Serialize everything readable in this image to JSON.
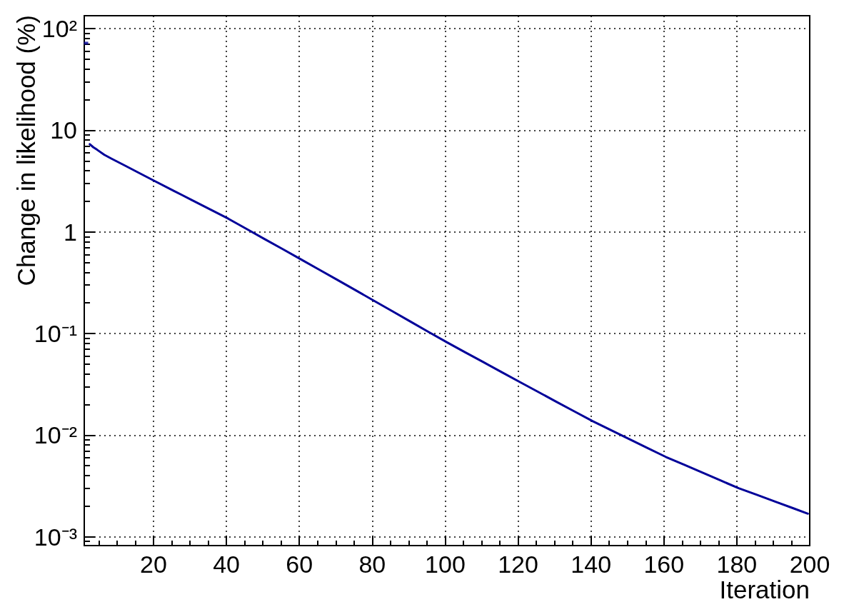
{
  "chart_data": {
    "type": "line",
    "xlabel": "Iteration",
    "ylabel": "Change in likelihood (%)",
    "log": "y",
    "grid": true,
    "marker": "none",
    "line_style": "solid",
    "xlim": [
      1,
      200
    ],
    "ylim": [
      0.00082,
      134
    ],
    "xticks": [
      {
        "value": 5,
        "label": null
      },
      {
        "value": 10,
        "label": null
      },
      {
        "value": 15,
        "label": null
      },
      20,
      {
        "value": 25,
        "label": null
      },
      {
        "value": 30,
        "label": null
      },
      {
        "value": 35,
        "label": null
      },
      40,
      {
        "value": 45,
        "label": null
      },
      {
        "value": 50,
        "label": null
      },
      {
        "value": 55,
        "label": null
      },
      60,
      {
        "value": 65,
        "label": null
      },
      {
        "value": 70,
        "label": null
      },
      {
        "value": 75,
        "label": null
      },
      80,
      {
        "value": 85,
        "label": null
      },
      {
        "value": 90,
        "label": null
      },
      {
        "value": 95,
        "label": null
      },
      100,
      {
        "value": 105,
        "label": null
      },
      {
        "value": 110,
        "label": null
      },
      {
        "value": 115,
        "label": null
      },
      120,
      {
        "value": 125,
        "label": null
      },
      {
        "value": 130,
        "label": null
      },
      {
        "value": 135,
        "label": null
      },
      140,
      {
        "value": 145,
        "label": null
      },
      {
        "value": 150,
        "label": null
      },
      {
        "value": 155,
        "label": null
      },
      160,
      {
        "value": 165,
        "label": null
      },
      {
        "value": 170,
        "label": null
      },
      {
        "value": 175,
        "label": null
      },
      180,
      {
        "value": 185,
        "label": null
      },
      {
        "value": 190,
        "label": null
      },
      {
        "value": 195,
        "label": null
      },
      200
    ],
    "yticks": [
      {
        "value": 0.0009,
        "label": null
      },
      {
        "value": 0.001,
        "label": "10⁻³"
      },
      {
        "value": 0.002,
        "label": null
      },
      {
        "value": 0.003,
        "label": null
      },
      {
        "value": 0.004,
        "label": null
      },
      {
        "value": 0.005,
        "label": null
      },
      {
        "value": 0.006,
        "label": null
      },
      {
        "value": 0.007,
        "label": null
      },
      {
        "value": 0.008,
        "label": null
      },
      {
        "value": 0.009,
        "label": null
      },
      {
        "value": 0.01,
        "label": "10⁻²"
      },
      {
        "value": 0.02,
        "label": null
      },
      {
        "value": 0.03,
        "label": null
      },
      {
        "value": 0.04,
        "label": null
      },
      {
        "value": 0.05,
        "label": null
      },
      {
        "value": 0.06,
        "label": null
      },
      {
        "value": 0.07,
        "label": null
      },
      {
        "value": 0.08,
        "label": null
      },
      {
        "value": 0.09,
        "label": null
      },
      {
        "value": 0.1,
        "label": "10⁻¹"
      },
      {
        "value": 0.2,
        "label": null
      },
      {
        "value": 0.3,
        "label": null
      },
      {
        "value": 0.4,
        "label": null
      },
      {
        "value": 0.5,
        "label": null
      },
      {
        "value": 0.6,
        "label": null
      },
      {
        "value": 0.7,
        "label": null
      },
      {
        "value": 0.8,
        "label": null
      },
      {
        "value": 0.9,
        "label": null
      },
      1,
      {
        "value": 2,
        "label": null
      },
      {
        "value": 3,
        "label": null
      },
      {
        "value": 4,
        "label": null
      },
      {
        "value": 5,
        "label": null
      },
      {
        "value": 6,
        "label": null
      },
      {
        "value": 7,
        "label": null
      },
      {
        "value": 8,
        "label": null
      },
      {
        "value": 9,
        "label": null
      },
      10,
      {
        "value": 20,
        "label": null
      },
      {
        "value": 30,
        "label": null
      },
      {
        "value": 40,
        "label": null
      },
      {
        "value": 50,
        "label": null
      },
      {
        "value": 60,
        "label": null
      },
      {
        "value": 70,
        "label": null
      },
      {
        "value": 80,
        "label": null
      },
      {
        "value": 90,
        "label": null
      },
      {
        "value": 100,
        "label": "10²"
      }
    ],
    "series": [
      {
        "type": "scatter",
        "marker": "square",
        "color": "#000099",
        "x": [
          1.5
        ],
        "values": [
          72
        ]
      },
      {
        "color": "#000099",
        "x": [
          2.5,
          3.5,
          4.5,
          6.5,
          8.5,
          10.5,
          12.5,
          15.5,
          20.5,
          25.5,
          30.5,
          35.5,
          40.5,
          45.5,
          50.5,
          55.5,
          60.5,
          65.5,
          70.5,
          75.5,
          80.5,
          85.5,
          90.5,
          95.5,
          100.5,
          105.5,
          110.5,
          115.5,
          120.5,
          125.5,
          130.5,
          135.5,
          140.5,
          145.5,
          150.5,
          155.5,
          160.5,
          165.5,
          170.5,
          175.5,
          180.5,
          185.5,
          190.5,
          195.5,
          199.5
        ],
        "values": [
          7.3,
          6.8,
          6.44,
          5.74,
          5.25,
          4.82,
          4.43,
          3.89,
          3.14,
          2.54,
          2.06,
          1.67,
          1.35,
          1.07,
          0.849,
          0.675,
          0.535,
          0.424,
          0.336,
          0.266,
          0.21,
          0.166,
          0.131,
          0.1035,
          0.0819,
          0.0654,
          0.0523,
          0.0417,
          0.0333,
          0.0267,
          0.0213,
          0.0171,
          0.0137,
          0.0112,
          0.00915,
          0.00748,
          0.00612,
          0.00513,
          0.00429,
          0.00359,
          0.00301,
          0.00259,
          0.00222,
          0.00191,
          0.00169
        ]
      }
    ]
  }
}
